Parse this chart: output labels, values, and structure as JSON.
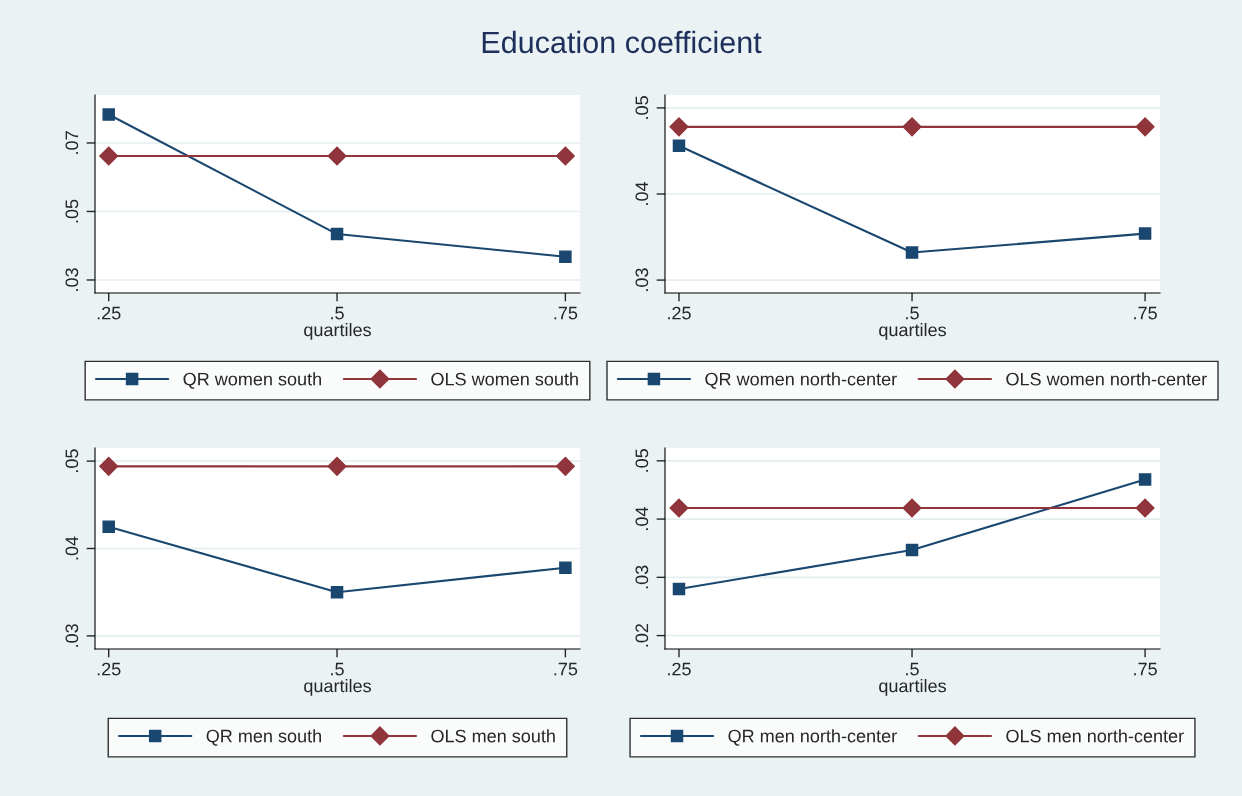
{
  "chart_data": [
    {
      "type": "line",
      "title": "Education coefficient",
      "xlabel": "quartiles",
      "x": [
        0.25,
        0.5,
        0.75
      ],
      "xlim": [
        0.235,
        0.766
      ],
      "xticks": [
        {
          "value": 0.25,
          "label": ".25"
        },
        {
          "value": 0.5,
          "label": ".5"
        },
        {
          "value": 0.75,
          "label": ".75"
        }
      ],
      "ylim": [
        0.0262,
        0.084
      ],
      "yticks": [
        {
          "value": 0.03,
          "label": ".03"
        },
        {
          "value": 0.05,
          "label": ".05"
        },
        {
          "value": 0.07,
          "label": ".07"
        }
      ],
      "grid": "y",
      "legend": "bottom",
      "series": [
        {
          "name": "QR women south",
          "color": "#1a476f",
          "marker": "square",
          "values": [
            0.0783,
            0.0434,
            0.0368
          ]
        },
        {
          "name": "OLS women south",
          "color": "#90353b",
          "marker": "diamond",
          "values": [
            0.0662,
            0.0662,
            0.0662
          ]
        }
      ]
    },
    {
      "type": "line",
      "xlabel": "quartiles",
      "x": [
        0.25,
        0.5,
        0.75
      ],
      "xlim": [
        0.235,
        0.766
      ],
      "xticks": [
        {
          "value": 0.25,
          "label": ".25"
        },
        {
          "value": 0.5,
          "label": ".5"
        },
        {
          "value": 0.75,
          "label": ".75"
        }
      ],
      "ylim": [
        0.0285,
        0.0515
      ],
      "yticks": [
        {
          "value": 0.03,
          "label": ".03"
        },
        {
          "value": 0.04,
          "label": ".04"
        },
        {
          "value": 0.05,
          "label": ".05"
        }
      ],
      "grid": "y",
      "legend": "bottom",
      "series": [
        {
          "name": "QR women north-center",
          "color": "#1a476f",
          "marker": "square",
          "values": [
            0.0456,
            0.0332,
            0.0354
          ]
        },
        {
          "name": "OLS women north-center",
          "color": "#90353b",
          "marker": "diamond",
          "values": [
            0.0478,
            0.0478,
            0.0478
          ]
        }
      ]
    },
    {
      "type": "line",
      "xlabel": "quartiles",
      "x": [
        0.25,
        0.5,
        0.75
      ],
      "xlim": [
        0.235,
        0.766
      ],
      "xticks": [
        {
          "value": 0.25,
          "label": ".25"
        },
        {
          "value": 0.5,
          "label": ".5"
        },
        {
          "value": 0.75,
          "label": ".75"
        }
      ],
      "ylim": [
        0.0285,
        0.0515
      ],
      "yticks": [
        {
          "value": 0.03,
          "label": ".03"
        },
        {
          "value": 0.04,
          "label": ".04"
        },
        {
          "value": 0.05,
          "label": ".05"
        }
      ],
      "grid": "y",
      "legend": "bottom",
      "series": [
        {
          "name": "QR men south",
          "color": "#1a476f",
          "marker": "square",
          "values": [
            0.0425,
            0.035,
            0.0378
          ]
        },
        {
          "name": "OLS men south",
          "color": "#90353b",
          "marker": "diamond",
          "values": [
            0.0494,
            0.0494,
            0.0494
          ]
        }
      ]
    },
    {
      "type": "line",
      "xlabel": "quartiles",
      "x": [
        0.25,
        0.5,
        0.75
      ],
      "xlim": [
        0.235,
        0.766
      ],
      "xticks": [
        {
          "value": 0.25,
          "label": ".25"
        },
        {
          "value": 0.5,
          "label": ".5"
        },
        {
          "value": 0.75,
          "label": ".75"
        }
      ],
      "ylim": [
        0.0177,
        0.0522
      ],
      "yticks": [
        {
          "value": 0.02,
          "label": ".02"
        },
        {
          "value": 0.03,
          "label": ".03"
        },
        {
          "value": 0.04,
          "label": ".04"
        },
        {
          "value": 0.05,
          "label": ".05"
        }
      ],
      "grid": "y",
      "legend": "bottom",
      "series": [
        {
          "name": "QR men north-center",
          "color": "#1a476f",
          "marker": "square",
          "values": [
            0.028,
            0.0347,
            0.0468
          ]
        },
        {
          "name": "OLS men north-center",
          "color": "#90353b",
          "marker": "diamond",
          "values": [
            0.0419,
            0.0419,
            0.0419
          ]
        }
      ]
    }
  ]
}
